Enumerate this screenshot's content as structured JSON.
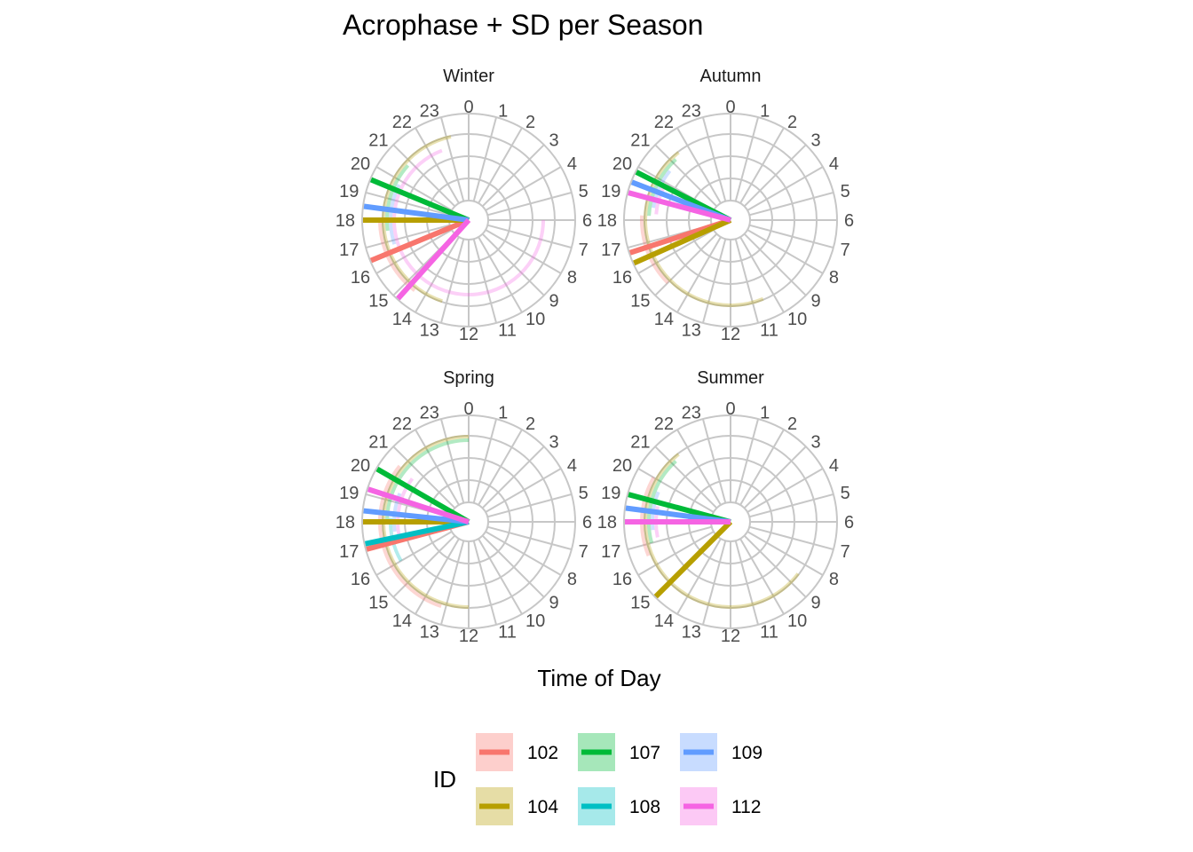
{
  "chart_data": {
    "type": "polar-segment",
    "title": "Acrophase + SD per Season",
    "xlabel": "Time of Day",
    "axis_range": [
      0,
      24
    ],
    "ticks": [
      "0",
      "1",
      "2",
      "3",
      "4",
      "5",
      "6",
      "7",
      "8",
      "9",
      "10",
      "11",
      "12",
      "13",
      "14",
      "15",
      "16",
      "17",
      "18",
      "19",
      "20",
      "21",
      "22",
      "23"
    ],
    "grid": true,
    "legend": {
      "title": "ID",
      "placement": "bottom",
      "entries": [
        {
          "label": "102",
          "color": "#F8766D"
        },
        {
          "label": "107",
          "color": "#00BA38"
        },
        {
          "label": "109",
          "color": "#619CFF"
        },
        {
          "label": "104",
          "color": "#B79F00"
        },
        {
          "label": "108",
          "color": "#00BFC4"
        },
        {
          "label": "112",
          "color": "#F564E3"
        }
      ]
    },
    "panels": [
      {
        "name": "Winter",
        "series": [
          {
            "id": "102",
            "acrophase": 16.5,
            "sd_low": 14.5,
            "sd_high": 18.0
          },
          {
            "id": "104",
            "acrophase": 18.0,
            "sd_low": 13.2,
            "sd_high": 23.2
          },
          {
            "id": "107",
            "acrophase": 19.5,
            "sd_low": 17.5,
            "sd_high": 20.8
          },
          {
            "id": "109",
            "acrophase": 18.5,
            "sd_low": 16.8,
            "sd_high": 19.8
          },
          {
            "id": "112",
            "acrophase": 14.8,
            "sd_low": 6.0,
            "sd_high": 22.6
          }
        ]
      },
      {
        "name": "Autumn",
        "series": [
          {
            "id": "102",
            "acrophase": 16.8,
            "sd_low": 15.0,
            "sd_high": 18.2
          },
          {
            "id": "104",
            "acrophase": 16.4,
            "sd_low": 10.5,
            "sd_high": 21.5
          },
          {
            "id": "107",
            "acrophase": 19.8,
            "sd_low": 18.2,
            "sd_high": 21.2
          },
          {
            "id": "109",
            "acrophase": 19.4,
            "sd_low": 18.6,
            "sd_high": 20.6
          },
          {
            "id": "112",
            "acrophase": 19.0,
            "sd_low": 18.3,
            "sd_high": 19.7
          }
        ]
      },
      {
        "name": "Spring",
        "series": [
          {
            "id": "102",
            "acrophase": 17.0,
            "sd_low": 13.2,
            "sd_high": 20.6
          },
          {
            "id": "104",
            "acrophase": 18.0,
            "sd_low": 12.0,
            "sd_high": 24.0
          },
          {
            "id": "107",
            "acrophase": 20.0,
            "sd_low": 18.0,
            "sd_high": 24.0
          },
          {
            "id": "108",
            "acrophase": 17.2,
            "sd_low": 16.0,
            "sd_high": 18.2
          },
          {
            "id": "109",
            "acrophase": 18.4,
            "sd_low": 17.5,
            "sd_high": 19.5
          },
          {
            "id": "112",
            "acrophase": 19.2,
            "sd_low": 17.2,
            "sd_high": 20.5
          }
        ]
      },
      {
        "name": "Summer",
        "series": [
          {
            "id": "102",
            "acrophase": 18.0,
            "sd_low": 16.5,
            "sd_high": 20.0
          },
          {
            "id": "104",
            "acrophase": 15.0,
            "sd_low": 8.5,
            "sd_high": 21.5
          },
          {
            "id": "107",
            "acrophase": 19.0,
            "sd_low": 17.0,
            "sd_high": 21.2
          },
          {
            "id": "109",
            "acrophase": 18.5,
            "sd_low": 17.6,
            "sd_high": 19.5
          },
          {
            "id": "112",
            "acrophase": 18.0,
            "sd_low": 17.2,
            "sd_high": 18.8
          }
        ]
      }
    ]
  }
}
